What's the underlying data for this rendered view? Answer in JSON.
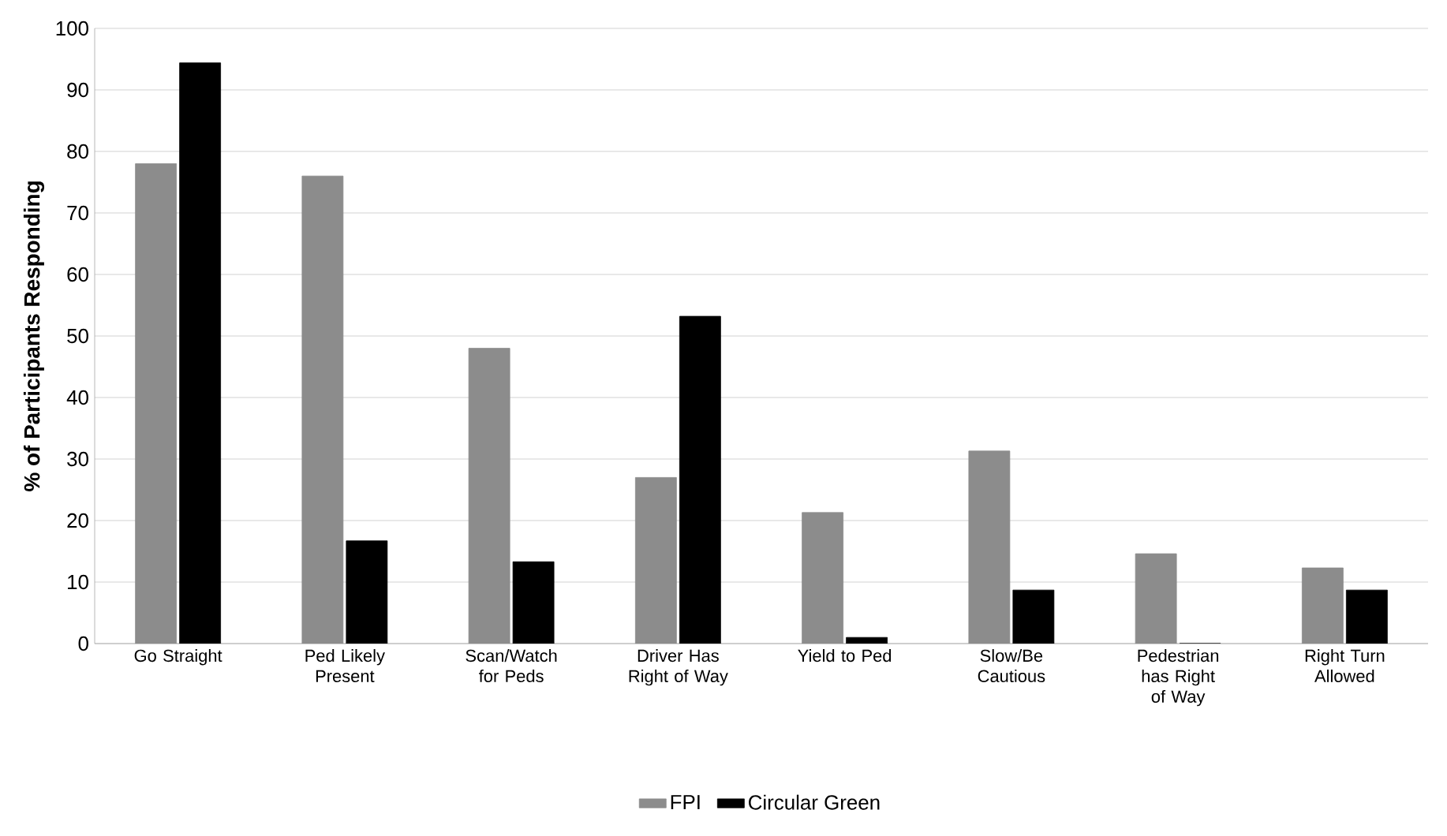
{
  "chart_data": {
    "type": "bar",
    "ylabel": "% of Participants Responding",
    "categories": [
      "Go Straight",
      "Ped Likely Present",
      "Scan/Watch for Peds",
      "Driver Has Right of Way",
      "Yield to Ped",
      "Slow/Be Cautious",
      "Pedestrian has Right of Way",
      "Right Turn Allowed"
    ],
    "series": [
      {
        "name": "FPI",
        "color": "#8c8c8c",
        "values": [
          78,
          76,
          48,
          27,
          21.3,
          31.3,
          14.6,
          12.3
        ]
      },
      {
        "name": "Circular Green",
        "color": "#000000",
        "values": [
          94.4,
          16.7,
          13.3,
          53.2,
          1,
          8.7,
          0,
          8.7
        ]
      }
    ],
    "ylim": [
      0,
      100
    ],
    "yticks": [
      0,
      10,
      20,
      30,
      40,
      50,
      60,
      70,
      80,
      90,
      100
    ],
    "grid": "y",
    "legend": "bottom"
  }
}
